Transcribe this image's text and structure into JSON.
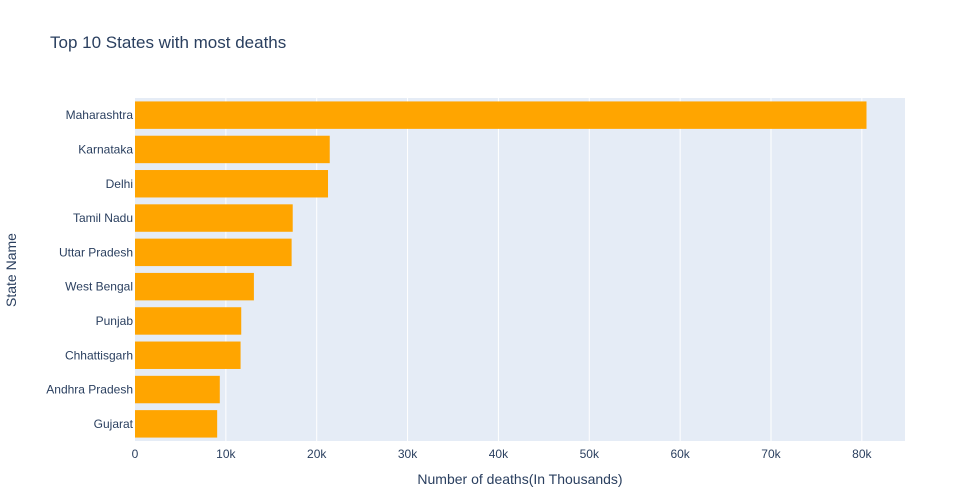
{
  "chart_data": {
    "type": "bar",
    "orientation": "horizontal",
    "title": "Top 10 States with most deaths",
    "xlabel": "Number of deaths(In Thousands)",
    "ylabel": "State Name",
    "categories": [
      "Maharashtra",
      "Karnataka",
      "Delhi",
      "Tamil Nadu",
      "Uttar Pradesh",
      "West Bengal",
      "Punjab",
      "Chhattisgarh",
      "Andhra Pradesh",
      "Gujarat"
    ],
    "values": [
      80512,
      21434,
      21244,
      17359,
      17238,
      13087,
      11693,
      11620,
      9333,
      9044
    ],
    "xlim": [
      0,
      84750
    ],
    "x_ticks": [
      0,
      10000,
      20000,
      30000,
      40000,
      50000,
      60000,
      70000,
      80000
    ],
    "x_tick_labels": [
      "0",
      "10k",
      "20k",
      "30k",
      "40k",
      "50k",
      "60k",
      "70k",
      "80k"
    ],
    "grid": true,
    "legend": "none",
    "colors": {
      "bar": "#ffa500",
      "plot_background": "#e5ecf6",
      "grid": "#ffffff",
      "text": "#2a3f5f"
    }
  }
}
